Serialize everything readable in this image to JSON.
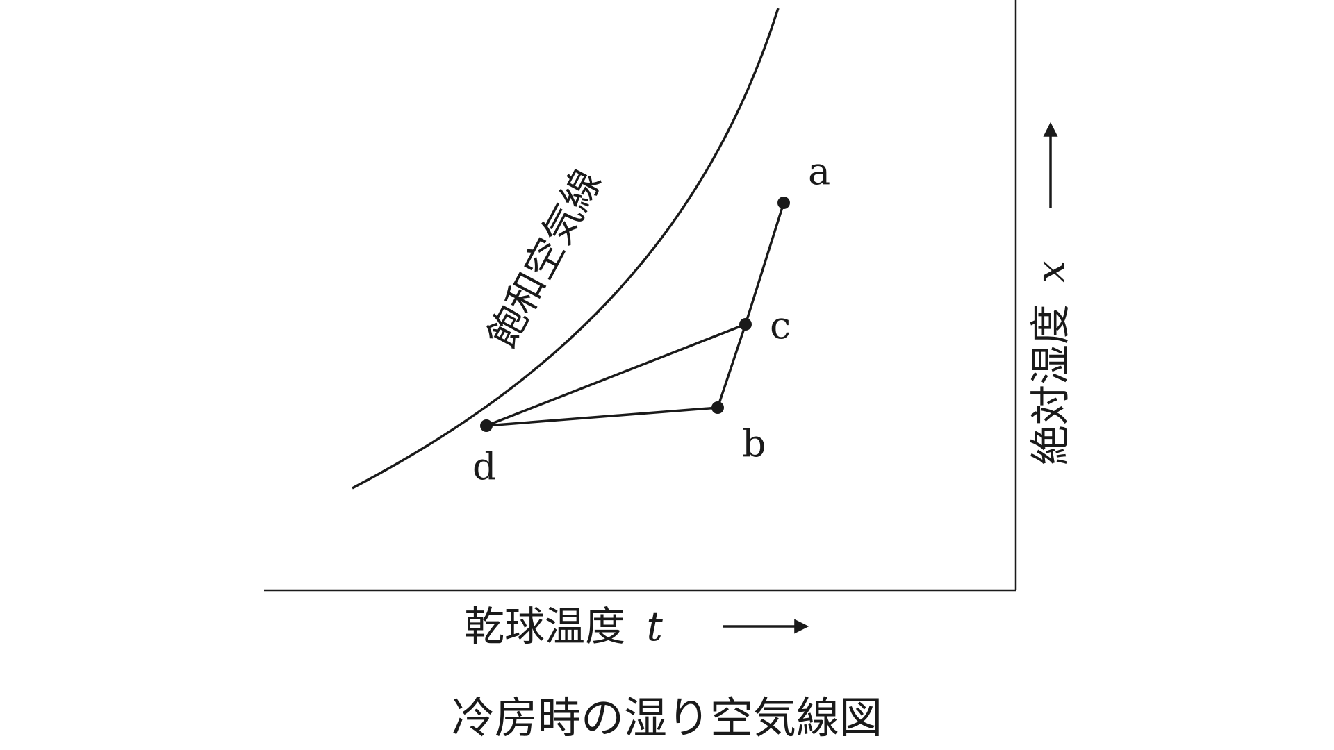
{
  "diagram": {
    "curve_label": "飽和空気線",
    "x_axis_label": "乾球温度",
    "x_axis_var": "t",
    "y_axis_label": "絶対湿度",
    "y_axis_var": "x",
    "caption": "冷房時の湿り空気線図",
    "points": {
      "a": "a",
      "b": "b",
      "c": "c",
      "d": "d"
    },
    "connections": [
      [
        "a",
        "c"
      ],
      [
        "c",
        "b"
      ],
      [
        "c",
        "d"
      ],
      [
        "b",
        "d"
      ]
    ],
    "colors": {
      "ink": "#1a1a1a",
      "background": "#ffffff"
    }
  }
}
